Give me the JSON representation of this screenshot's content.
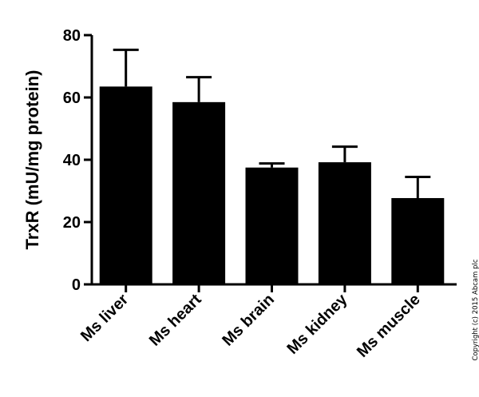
{
  "chart_data": {
    "type": "bar",
    "categories": [
      "Ms liver",
      "Ms heart",
      "Ms brain",
      "Ms kidney",
      "Ms muscle"
    ],
    "values": [
      63.5,
      58.5,
      37.5,
      39.2,
      27.7
    ],
    "errors": [
      11.8,
      8.0,
      1.3,
      5.0,
      6.8
    ],
    "ylabel": "TrxR (mU/mg protein)",
    "xlabel": "",
    "title": "",
    "ylim": [
      0,
      80
    ],
    "yticks": [
      0,
      20,
      40,
      60,
      80
    ],
    "grid": false,
    "bar_color": "#000000"
  },
  "copyright": "Copyright (c) 2015 Abcam plc"
}
